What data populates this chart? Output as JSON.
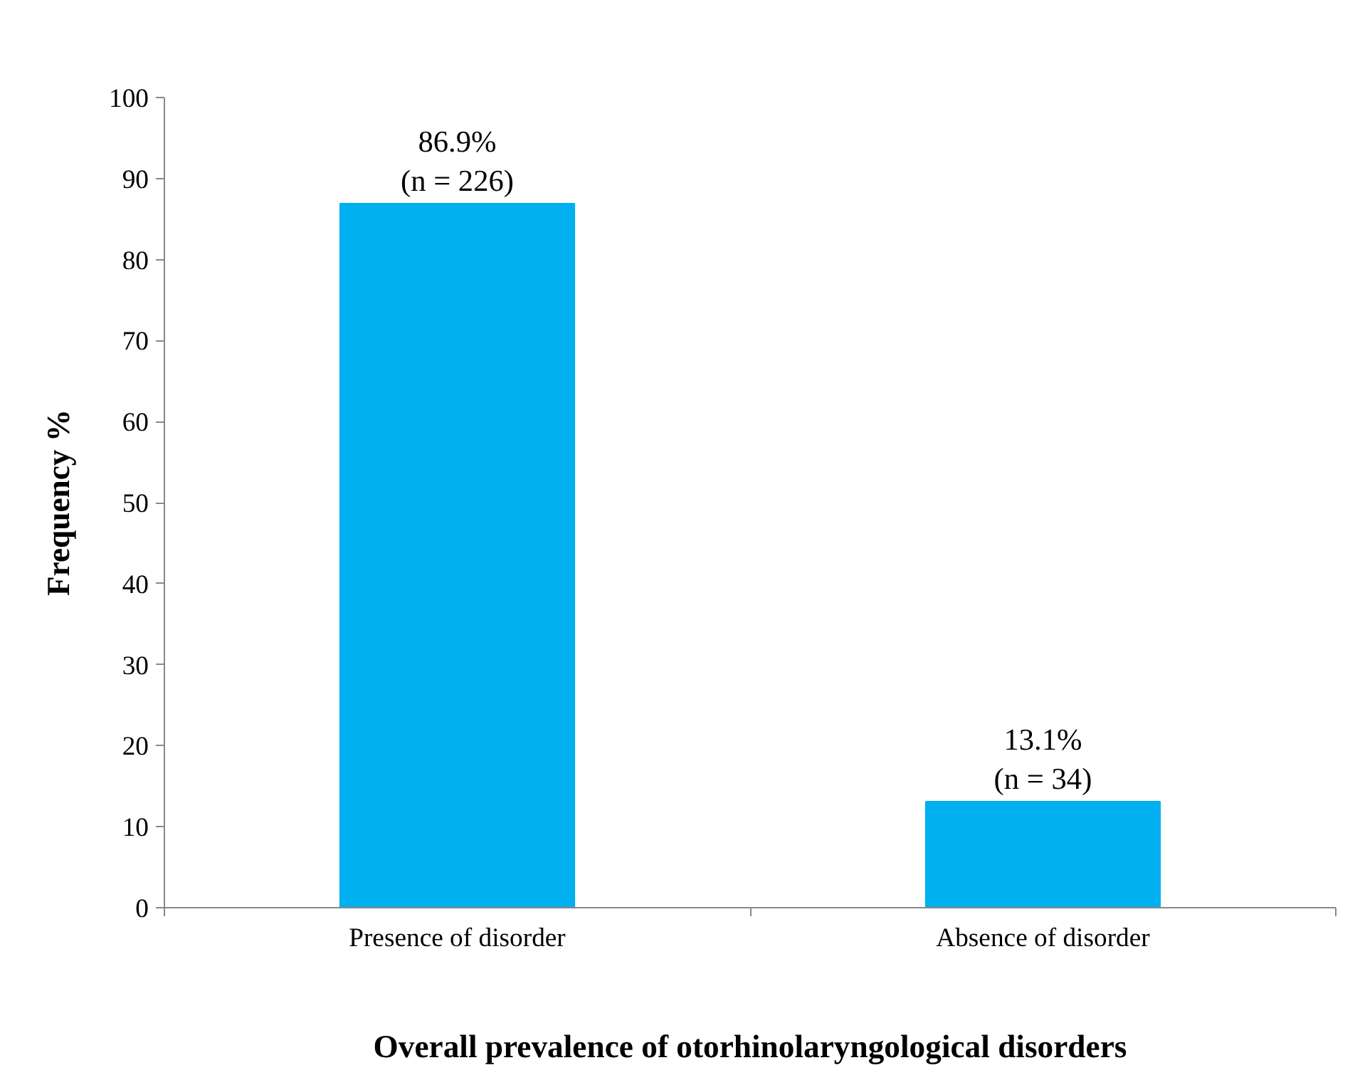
{
  "chart_data": {
    "type": "bar",
    "xlabel": "Overall prevalence of otorhinolaryngological disorders",
    "ylabel": "Frequency %",
    "categories": [
      "Presence of disorder",
      "Absence of disorder"
    ],
    "values": [
      86.9,
      13.1
    ],
    "value_labels": [
      "86.9%\n(n = 226)",
      "13.1%\n(n = 34)"
    ],
    "color": "#00b0f0",
    "ylim": [
      0,
      100
    ],
    "yticks": [
      0,
      10,
      20,
      30,
      40,
      50,
      60,
      70,
      80,
      90,
      100
    ],
    "grid": false,
    "legend": false
  }
}
